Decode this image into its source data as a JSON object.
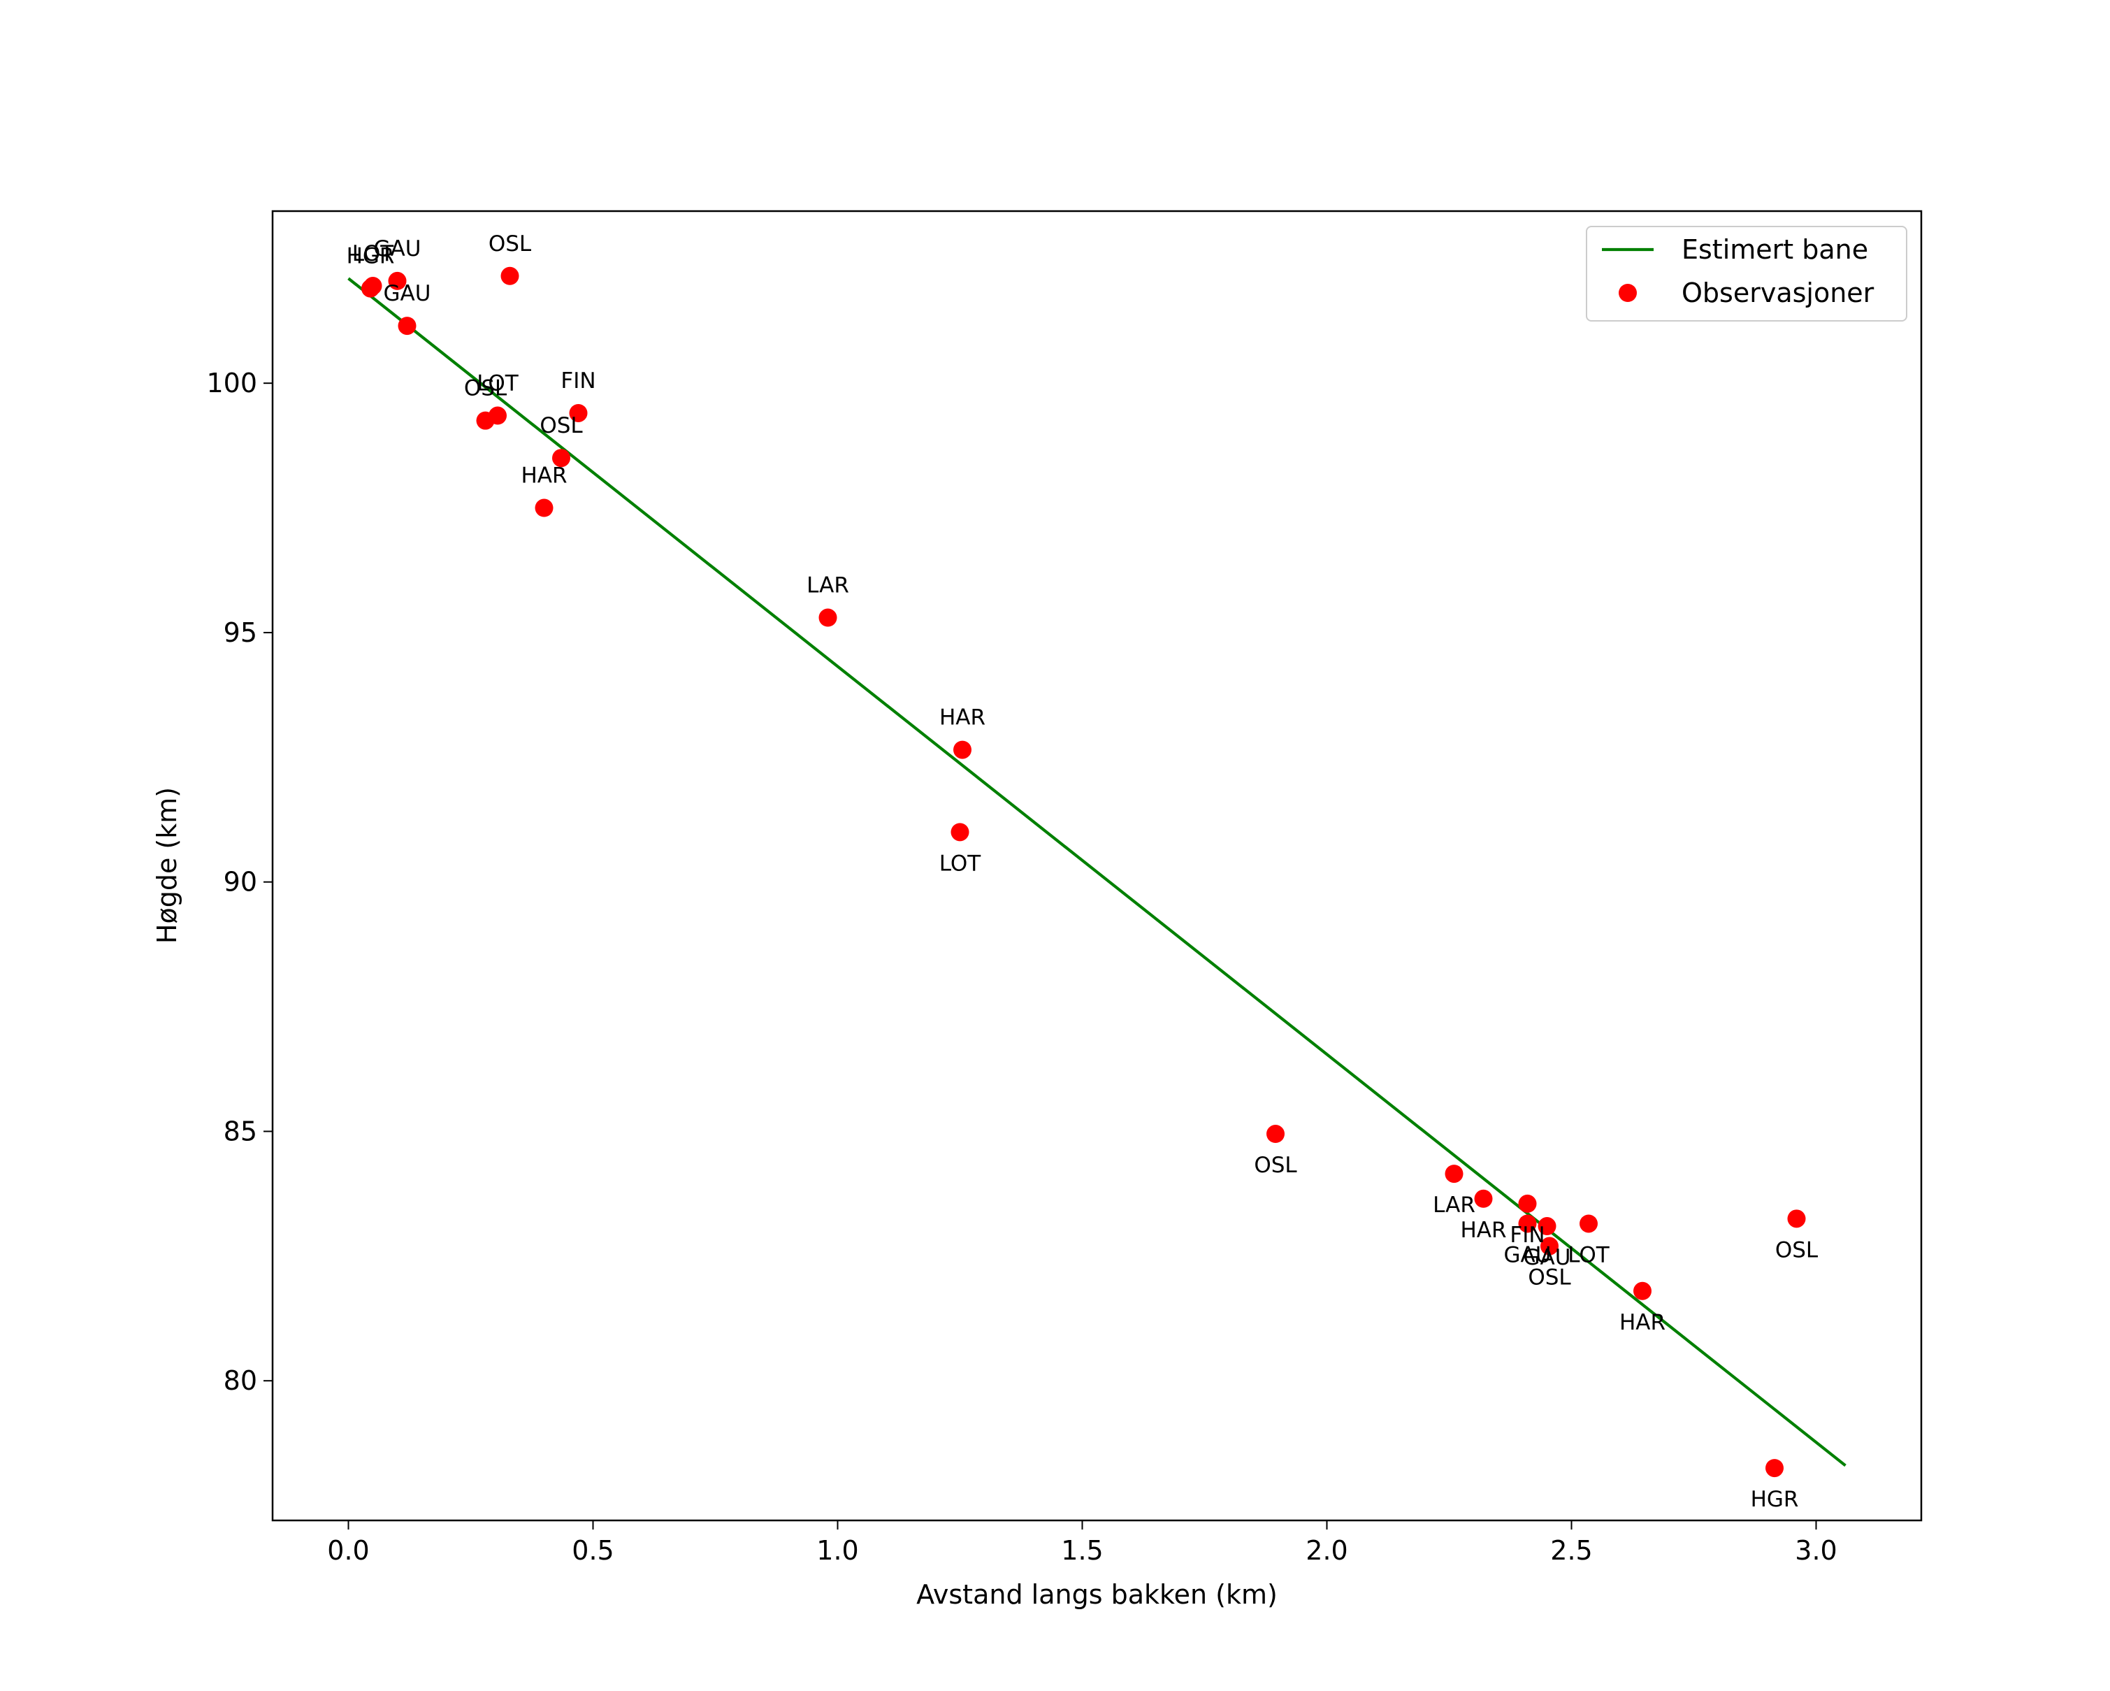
{
  "chart_data": {
    "type": "scatter",
    "title": "",
    "xlabel": "Avstand langs bakken (km)",
    "ylabel": "Høgde (km)",
    "xlim": [
      -0.155,
      3.215
    ],
    "ylim": [
      77.2,
      103.45
    ],
    "xticks": [
      0.0,
      0.5,
      1.0,
      1.5,
      2.0,
      2.5,
      3.0
    ],
    "xtick_labels": [
      "0.0",
      "0.5",
      "1.0",
      "1.5",
      "2.0",
      "2.5",
      "3.0"
    ],
    "yticks": [
      80,
      85,
      90,
      95,
      100
    ],
    "ytick_labels": [
      "80",
      "85",
      "90",
      "95",
      "100"
    ],
    "grid": false,
    "legend": {
      "position": "top-right",
      "entries": [
        "Estimert bane",
        "Observasjoner"
      ]
    },
    "series": [
      {
        "name": "Estimert bane",
        "kind": "line",
        "color": "#008000",
        "x": [
          0.0,
          3.06
        ],
        "y": [
          102.1,
          78.3
        ]
      },
      {
        "name": "Observasjoner",
        "kind": "scatter",
        "color": "#ff0000",
        "points": [
          {
            "x": 0.045,
            "y": 101.9,
            "label": "HGR",
            "label_pos": "above"
          },
          {
            "x": 0.05,
            "y": 101.95,
            "label": "LOT",
            "label_pos": "above"
          },
          {
            "x": 0.1,
            "y": 102.05,
            "label": "GAU",
            "label_pos": "above"
          },
          {
            "x": 0.12,
            "y": 101.15,
            "label": "GAU",
            "label_pos": "above"
          },
          {
            "x": 0.33,
            "y": 102.15,
            "label": "OSL",
            "label_pos": "above"
          },
          {
            "x": 0.28,
            "y": 99.25,
            "label": "OSL",
            "label_pos": "above"
          },
          {
            "x": 0.305,
            "y": 99.35,
            "label": "LOT",
            "label_pos": "above"
          },
          {
            "x": 0.47,
            "y": 99.4,
            "label": "FIN",
            "label_pos": "above"
          },
          {
            "x": 0.435,
            "y": 98.5,
            "label": "OSL",
            "label_pos": "above"
          },
          {
            "x": 0.4,
            "y": 97.5,
            "label": "HAR",
            "label_pos": "above"
          },
          {
            "x": 0.98,
            "y": 95.3,
            "label": "LAR",
            "label_pos": "above"
          },
          {
            "x": 1.255,
            "y": 92.65,
            "label": "HAR",
            "label_pos": "above"
          },
          {
            "x": 1.25,
            "y": 91.0,
            "label": "LOT",
            "label_pos": "below"
          },
          {
            "x": 1.895,
            "y": 84.95,
            "label": "OSL",
            "label_pos": "below"
          },
          {
            "x": 2.26,
            "y": 84.15,
            "label": "LAR",
            "label_pos": "below"
          },
          {
            "x": 2.32,
            "y": 83.65,
            "label": "HAR",
            "label_pos": "below"
          },
          {
            "x": 2.41,
            "y": 83.55,
            "label": "FIN",
            "label_pos": "below"
          },
          {
            "x": 2.41,
            "y": 83.15,
            "label": "GAU",
            "label_pos": "below"
          },
          {
            "x": 2.45,
            "y": 83.1,
            "label": "GAU",
            "label_pos": "below"
          },
          {
            "x": 2.455,
            "y": 82.7,
            "label": "OSL",
            "label_pos": "below"
          },
          {
            "x": 2.535,
            "y": 83.15,
            "label": "LOT",
            "label_pos": "below"
          },
          {
            "x": 2.645,
            "y": 81.8,
            "label": "HAR",
            "label_pos": "below"
          },
          {
            "x": 2.915,
            "y": 78.25,
            "label": "HGR",
            "label_pos": "below"
          },
          {
            "x": 2.96,
            "y": 83.25,
            "label": "OSL",
            "label_pos": "below"
          }
        ]
      }
    ]
  }
}
